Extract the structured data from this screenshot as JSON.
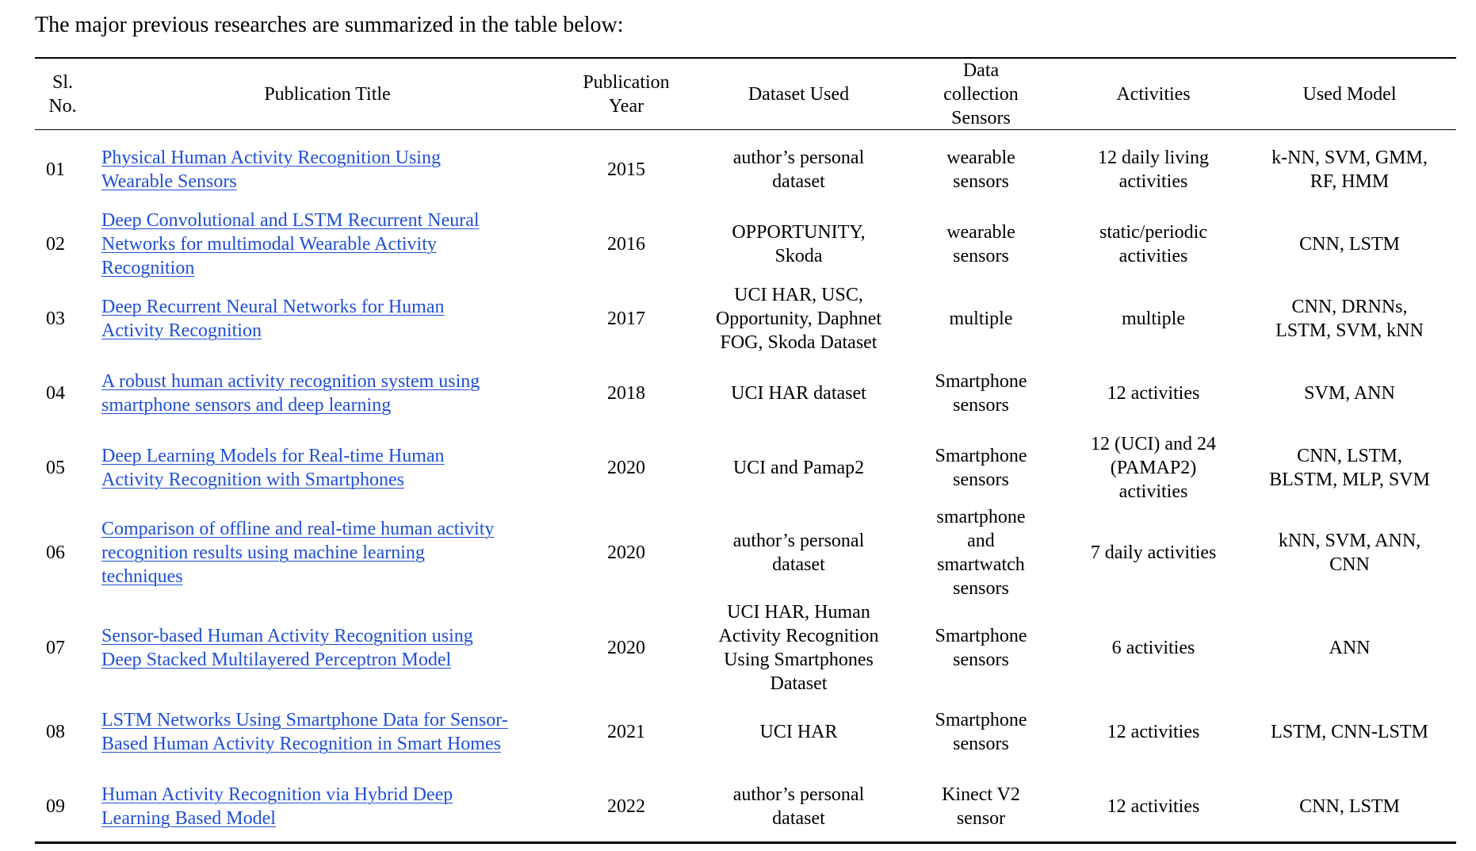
{
  "intro_text": "The major previous researches are summarized in the table below:",
  "table": {
    "headers": {
      "sl": "Sl.\nNo.",
      "title": "Publication Title",
      "year": "Publication\nYear",
      "dataset": "Dataset Used",
      "sensors": "Data\ncollection\nSensors",
      "activities": "Activities",
      "model": "Used Model"
    },
    "rows": [
      {
        "sl": "01",
        "title": "Physical Human Activity Recognition Using\nWearable Sensors",
        "year": "2015",
        "dataset": "author’s personal\ndataset",
        "sensors": "wearable\nsensors",
        "activities": "12 daily living\nactivities",
        "model": "k-NN, SVM, GMM,\nRF, HMM"
      },
      {
        "sl": "02",
        "title": "Deep Convolutional and LSTM Recurrent Neural\nNetworks for  multimodal Wearable Activity\nRecognition",
        "year": "2016",
        "dataset": "OPPORTUNITY,\nSkoda",
        "sensors": "wearable\nsensors",
        "activities": "static/periodic\nactivities",
        "model": "CNN, LSTM"
      },
      {
        "sl": "03",
        "title": "Deep Recurrent Neural Networks for Human\nActivity Recognition",
        "year": "2017",
        "dataset": "UCI HAR, USC,\nOpportunity, Daphnet\nFOG, Skoda Dataset",
        "sensors": "multiple",
        "activities": "multiple",
        "model": "CNN, DRNNs,\nLSTM, SVM, kNN"
      },
      {
        "sl": "04",
        "title": "A robust human activity recognition system using\nsmartphone sensors and deep learning",
        "year": "2018",
        "dataset": "UCI HAR dataset",
        "sensors": "Smartphone\nsensors",
        "activities": "12 activities",
        "model": "SVM, ANN"
      },
      {
        "sl": "05",
        "title": "Deep Learning Models for Real-time Human\nActivity Recognition with Smartphones",
        "year": "2020",
        "dataset": "UCI and Pamap2",
        "sensors": "Smartphone\nsensors",
        "activities": "12 (UCI) and 24\n(PAMAP2)\nactivities",
        "model": "CNN, LSTM,\nBLSTM, MLP, SVM"
      },
      {
        "sl": "06",
        "title": "Comparison of offline and real-time human activity\nrecognition results using machine learning\ntechniques",
        "year": "2020",
        "dataset": "author’s personal\ndataset",
        "sensors": "smartphone\nand\nsmartwatch\nsensors",
        "activities": "7 daily activities",
        "model": "kNN, SVM, ANN,\nCNN"
      },
      {
        "sl": "07",
        "title": "Sensor-based Human Activity Recognition using\nDeep Stacked Multilayered Perceptron Model",
        "year": "2020",
        "dataset": "UCI HAR, Human\nActivity Recognition\nUsing Smartphones\nDataset",
        "sensors": "Smartphone\nsensors",
        "activities": "6 activities",
        "model": "ANN"
      },
      {
        "sl": "08",
        "title": "LSTM Networks Using Smartphone Data for Sensor-\nBased Human Activity Recognition in Smart Homes",
        "year": "2021",
        "dataset": "UCI HAR",
        "sensors": "Smartphone\nsensors",
        "activities": "12 activities",
        "model": "LSTM, CNN-LSTM"
      },
      {
        "sl": "09",
        "title": "Human Activity Recognition via Hybrid Deep\nLearning Based Model",
        "year": "2022",
        "dataset": "author’s personal\ndataset",
        "sensors": "Kinect V2\nsensor",
        "activities": "12 activities",
        "model": "CNN, LSTM"
      }
    ]
  }
}
